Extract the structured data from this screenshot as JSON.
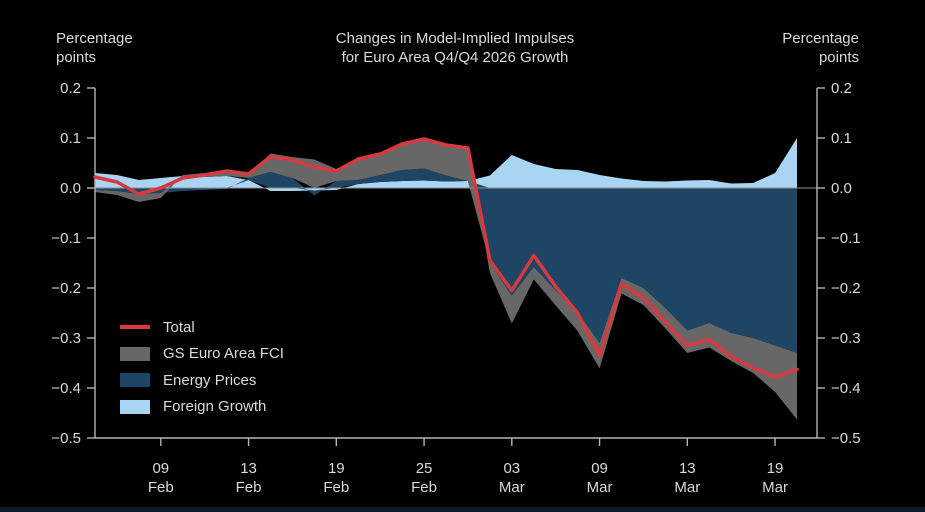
{
  "title": {
    "line1": "Changes in Model-Implied Impulses",
    "line2": "for Euro Area Q4/Q4 2026 Growth"
  },
  "left_axis_caption": {
    "line1": "Percentage",
    "line2": "points"
  },
  "right_axis_caption": {
    "line1": "Percentage",
    "line2": "points"
  },
  "colors": {
    "background": "#000000",
    "text": "#dadada",
    "axis": "#b5b5b5",
    "zero_line": "#8f8f8f",
    "bottom_bar": "#0c1928"
  },
  "chart_data": {
    "type": "area",
    "stacked": true,
    "ylim": [
      -0.5,
      0.2
    ],
    "grid": false,
    "legend_position": "inside-bottom-left",
    "legend": [
      "Total",
      "GS Euro Area FCI",
      "Energy Prices",
      "Foreign Growth"
    ],
    "x": [
      "04 Feb",
      "05 Feb",
      "06 Feb",
      "09 Feb",
      "10 Feb",
      "11 Feb",
      "12 Feb",
      "13 Feb",
      "16 Feb",
      "17 Feb",
      "18 Feb",
      "19 Feb",
      "20 Feb",
      "23 Feb",
      "24 Feb",
      "25 Feb",
      "26 Feb",
      "27 Feb",
      "02 Mar",
      "03 Mar",
      "04 Mar",
      "05 Mar",
      "06 Mar",
      "09 Mar",
      "10 Mar",
      "11 Mar",
      "12 Mar",
      "13 Mar",
      "16 Mar",
      "17 Mar",
      "18 Mar",
      "19 Mar",
      "20 Mar"
    ],
    "x_ticks": [
      {
        "index": 3,
        "day": "09",
        "month": "Feb"
      },
      {
        "index": 7,
        "day": "13",
        "month": "Feb"
      },
      {
        "index": 11,
        "day": "19",
        "month": "Feb"
      },
      {
        "index": 15,
        "day": "25",
        "month": "Feb"
      },
      {
        "index": 19,
        "day": "03",
        "month": "Mar"
      },
      {
        "index": 23,
        "day": "09",
        "month": "Mar"
      },
      {
        "index": 27,
        "day": "13",
        "month": "Mar"
      },
      {
        "index": 31,
        "day": "19",
        "month": "Mar"
      }
    ],
    "y_ticks": [
      {
        "value": 0.2,
        "label": "0.2"
      },
      {
        "value": 0.1,
        "label": "0.1"
      },
      {
        "value": 0.0,
        "label": "0.0"
      },
      {
        "value": -0.1,
        "label": "−0.1"
      },
      {
        "value": -0.2,
        "label": "−0.2"
      },
      {
        "value": -0.3,
        "label": "−0.3"
      },
      {
        "value": -0.4,
        "label": "−0.4"
      },
      {
        "value": -0.5,
        "label": "−0.5"
      }
    ],
    "series": [
      {
        "name": "Foreign Growth",
        "color": "#a9d5f3",
        "values": [
          0.03,
          0.026,
          0.016,
          0.02,
          0.024,
          0.022,
          0.024,
          0.016,
          -0.006,
          -0.006,
          -0.005,
          -0.004,
          0.008,
          0.012,
          0.014,
          0.015,
          0.013,
          0.014,
          0.025,
          0.066,
          0.048,
          0.038,
          0.036,
          0.026,
          0.019,
          0.014,
          0.013,
          0.015,
          0.016,
          0.009,
          0.01,
          0.03,
          0.1
        ]
      },
      {
        "name": "Energy Prices",
        "color": "#1e4563",
        "values": [
          -0.004,
          -0.006,
          -0.012,
          -0.01,
          -0.006,
          -0.004,
          -0.002,
          0.004,
          0.032,
          0.02,
          -0.01,
          0.014,
          0.008,
          0.014,
          0.022,
          0.024,
          0.012,
          0.0,
          -0.15,
          -0.215,
          -0.158,
          -0.205,
          -0.248,
          -0.31,
          -0.18,
          -0.2,
          -0.24,
          -0.285,
          -0.27,
          -0.29,
          -0.3,
          -0.315,
          -0.33
        ]
      },
      {
        "name": "GS Euro Area FCI",
        "color": "#676767",
        "values": [
          -0.004,
          -0.008,
          -0.016,
          -0.01,
          0.002,
          0.008,
          0.012,
          0.008,
          0.037,
          0.042,
          0.057,
          0.024,
          0.042,
          0.042,
          0.052,
          0.059,
          0.061,
          0.066,
          -0.02,
          -0.056,
          -0.025,
          -0.03,
          -0.038,
          -0.051,
          -0.031,
          -0.034,
          -0.041,
          -0.045,
          -0.049,
          -0.056,
          -0.07,
          -0.093,
          -0.133
        ]
      }
    ],
    "line": {
      "name": "Total",
      "color": "#d7393f",
      "values": [
        0.022,
        0.012,
        -0.012,
        0.0,
        0.02,
        0.026,
        0.034,
        0.028,
        0.063,
        0.056,
        0.042,
        0.034,
        0.058,
        0.068,
        0.088,
        0.098,
        0.086,
        0.08,
        -0.145,
        -0.205,
        -0.135,
        -0.197,
        -0.25,
        -0.335,
        -0.192,
        -0.22,
        -0.268,
        -0.315,
        -0.303,
        -0.337,
        -0.36,
        -0.378,
        -0.363
      ]
    }
  }
}
